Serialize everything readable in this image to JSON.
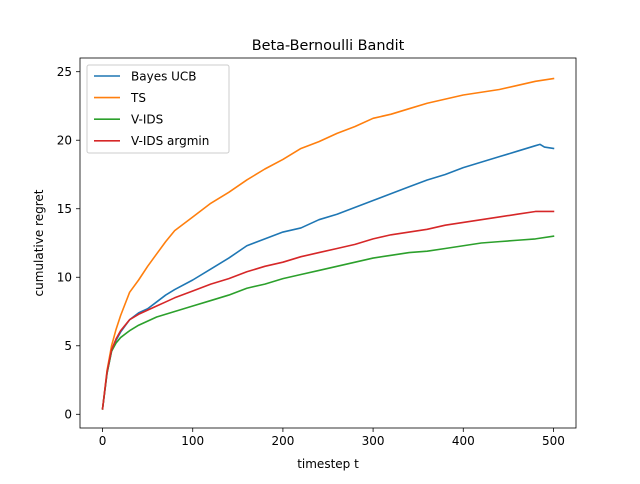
{
  "chart_data": {
    "type": "line",
    "title": "Beta-Bernoulli Bandit",
    "xlabel": "timestep t",
    "ylabel": "cumulative regret",
    "xlim": [
      -25,
      525
    ],
    "ylim": [
      -1.0,
      26.0
    ],
    "xticks": [
      0,
      100,
      200,
      300,
      400,
      500
    ],
    "yticks": [
      0,
      5,
      10,
      15,
      20,
      25
    ],
    "grid": false,
    "legend_position": "top-left",
    "series": [
      {
        "name": "Bayes UCB",
        "color": "#1f77b4",
        "x": [
          0,
          5,
          10,
          15,
          20,
          30,
          40,
          50,
          60,
          70,
          80,
          100,
          120,
          140,
          160,
          180,
          200,
          220,
          240,
          260,
          280,
          300,
          320,
          340,
          360,
          380,
          400,
          420,
          440,
          460,
          480,
          485,
          490,
          500
        ],
        "y": [
          0.4,
          3.0,
          4.6,
          5.4,
          6.0,
          6.9,
          7.4,
          7.7,
          8.2,
          8.7,
          9.1,
          9.8,
          10.6,
          11.4,
          12.3,
          12.8,
          13.3,
          13.6,
          14.2,
          14.6,
          15.1,
          15.6,
          16.1,
          16.6,
          17.1,
          17.5,
          18.0,
          18.4,
          18.8,
          19.2,
          19.6,
          19.7,
          19.5,
          19.4
        ]
      },
      {
        "name": "TS",
        "color": "#ff7f0e",
        "x": [
          0,
          5,
          10,
          15,
          20,
          30,
          40,
          50,
          60,
          70,
          80,
          100,
          120,
          140,
          160,
          180,
          200,
          220,
          240,
          260,
          280,
          300,
          320,
          340,
          360,
          380,
          400,
          420,
          440,
          460,
          480,
          500
        ],
        "y": [
          0.4,
          3.2,
          5.0,
          6.2,
          7.2,
          8.9,
          9.8,
          10.8,
          11.7,
          12.6,
          13.4,
          14.4,
          15.4,
          16.2,
          17.1,
          17.9,
          18.6,
          19.4,
          19.9,
          20.5,
          21.0,
          21.6,
          21.9,
          22.3,
          22.7,
          23.0,
          23.3,
          23.5,
          23.7,
          24.0,
          24.3,
          24.5
        ]
      },
      {
        "name": "V-IDS",
        "color": "#2ca02c",
        "x": [
          0,
          5,
          10,
          15,
          20,
          30,
          40,
          50,
          60,
          70,
          80,
          100,
          120,
          140,
          160,
          180,
          200,
          220,
          240,
          260,
          280,
          300,
          320,
          340,
          360,
          380,
          400,
          420,
          440,
          460,
          480,
          500
        ],
        "y": [
          0.4,
          3.0,
          4.6,
          5.2,
          5.6,
          6.1,
          6.5,
          6.8,
          7.1,
          7.3,
          7.5,
          7.9,
          8.3,
          8.7,
          9.2,
          9.5,
          9.9,
          10.2,
          10.5,
          10.8,
          11.1,
          11.4,
          11.6,
          11.8,
          11.9,
          12.1,
          12.3,
          12.5,
          12.6,
          12.7,
          12.8,
          13.0
        ]
      },
      {
        "name": "V-IDS argmin",
        "color": "#d62728",
        "x": [
          0,
          5,
          10,
          15,
          20,
          30,
          40,
          50,
          60,
          70,
          80,
          100,
          120,
          140,
          160,
          180,
          200,
          220,
          240,
          260,
          280,
          300,
          320,
          340,
          360,
          380,
          400,
          420,
          440,
          460,
          480,
          500
        ],
        "y": [
          0.4,
          3.1,
          4.7,
          5.5,
          6.1,
          6.9,
          7.3,
          7.6,
          7.9,
          8.2,
          8.5,
          9.0,
          9.5,
          9.9,
          10.4,
          10.8,
          11.1,
          11.5,
          11.8,
          12.1,
          12.4,
          12.8,
          13.1,
          13.3,
          13.5,
          13.8,
          14.0,
          14.2,
          14.4,
          14.6,
          14.8,
          14.8
        ]
      }
    ]
  }
}
